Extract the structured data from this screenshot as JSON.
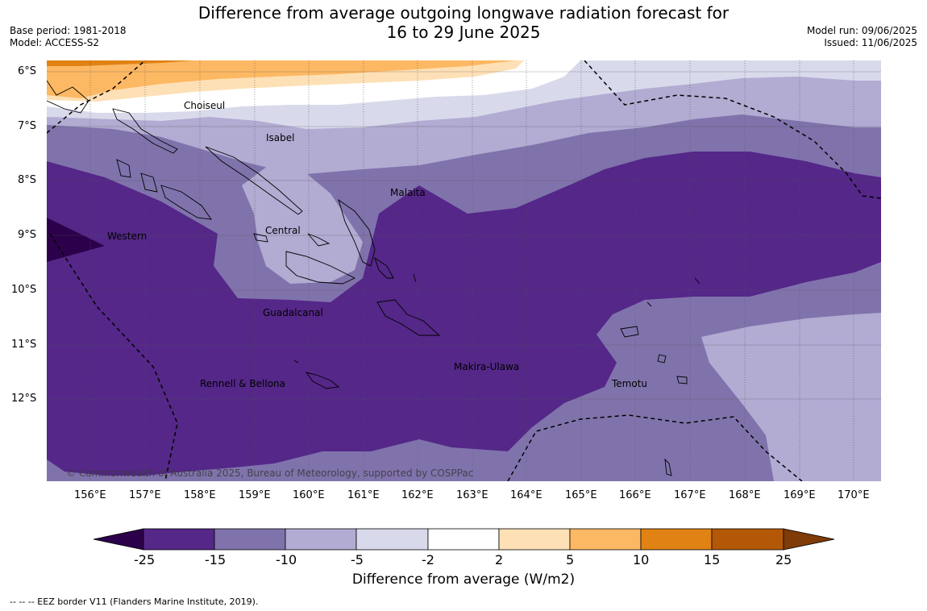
{
  "title": {
    "line1": "Difference from average outgoing longwave radiation forecast for",
    "line2": "16 to 29 June 2025"
  },
  "meta": {
    "base_period": "Base period: 1981-2018",
    "model": "Model: ACCESS-S2",
    "model_run": "Model run: 09/06/2025",
    "issued": "Issued: 11/06/2025"
  },
  "axes": {
    "lat_labels": [
      "6°S",
      "7°S",
      "8°S",
      "9°S",
      "10°S",
      "11°S",
      "12°S"
    ],
    "lon_labels": [
      "156°E",
      "157°E",
      "158°E",
      "159°E",
      "160°E",
      "161°E",
      "162°E",
      "163°E",
      "164°E",
      "165°E",
      "166°E",
      "167°E",
      "168°E",
      "169°E",
      "170°E"
    ]
  },
  "regions": [
    "Choiseul",
    "Isabel",
    "Malaita",
    "Western",
    "Central",
    "Guadalcanal",
    "Makira-Ulawa",
    "Rennell & Bellona",
    "Temotu"
  ],
  "copyright": "© Commonwealth of Australia 2025, Bureau of Meteorology, supported by COSPPac",
  "colorbar": {
    "label": "Difference from average (W/m2)",
    "ticks": [
      "-25",
      "-15",
      "-10",
      "-5",
      "-2",
      "2",
      "5",
      "10",
      "15",
      "25"
    ],
    "colors": [
      "#2d004b",
      "#542788",
      "#8073ac",
      "#b2abd2",
      "#d8daeb",
      "#ffffff",
      "#fee0b6",
      "#fdb863",
      "#e08214",
      "#b35806",
      "#7f3b08"
    ]
  },
  "legend_note": "--  --  -- EEZ border V11 (Flanders Marine Institute, 2019)."
}
